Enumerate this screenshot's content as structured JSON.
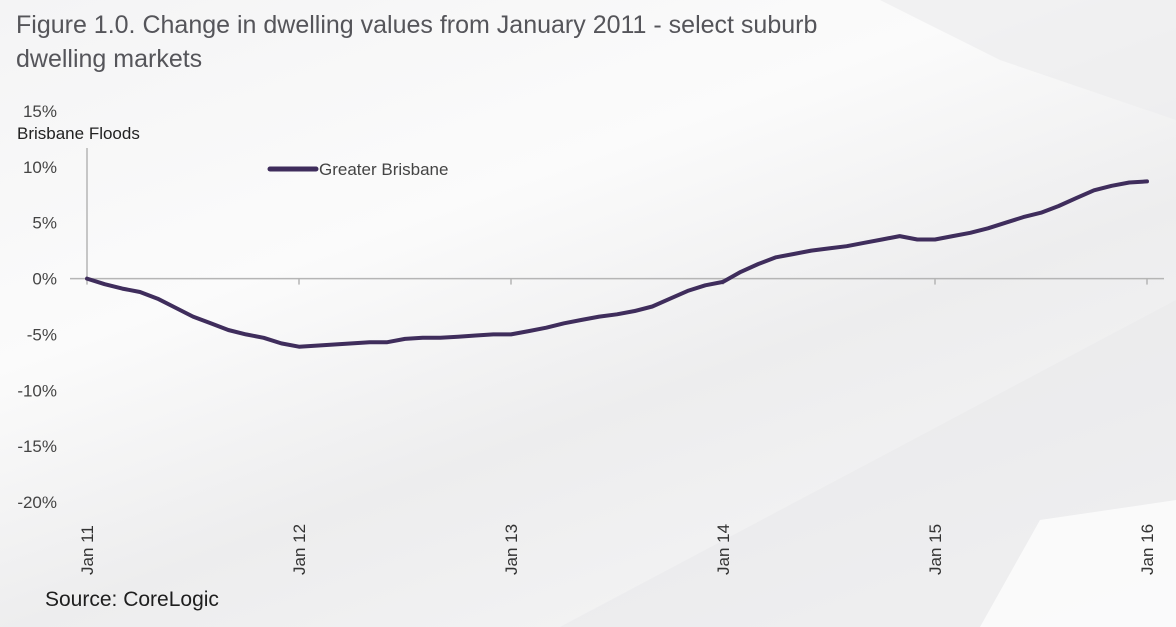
{
  "title": "Figure 1.0. Change in dwelling values from January 2011 - select suburb dwelling markets",
  "source": "Source: CoreLogic",
  "annotation": "Brisbane Floods",
  "colors": {
    "series": "#3f2d5c",
    "axis": "#b5b5b5"
  },
  "chart_data": {
    "type": "line",
    "title": "Figure 1.0. Change in dwelling values from January 2011 - select suburb dwelling markets",
    "xlabel": "",
    "ylabel": "",
    "ylim": [
      -20,
      15
    ],
    "yticks": [
      "15%",
      "10%",
      "5%",
      "0%",
      "-5%",
      "-10%",
      "-15%",
      "-20%"
    ],
    "yticks_values": [
      15,
      10,
      5,
      0,
      -5,
      -10,
      -15,
      -20
    ],
    "xticks": [
      "Jan 11",
      "Jan 12",
      "Jan 13",
      "Jan 14",
      "Jan 15",
      "Jan 16"
    ],
    "grid": false,
    "legend": "top-left",
    "annotations": [
      {
        "text": "Brisbane Floods",
        "x": "Jan 11"
      }
    ],
    "series": [
      {
        "name": "Greater Brisbane",
        "x": [
          "Jan 11",
          "Feb 11",
          "Mar 11",
          "Apr 11",
          "May 11",
          "Jun 11",
          "Jul 11",
          "Aug 11",
          "Sep 11",
          "Oct 11",
          "Nov 11",
          "Dec 11",
          "Jan 12",
          "Feb 12",
          "Mar 12",
          "Apr 12",
          "May 12",
          "Jun 12",
          "Jul 12",
          "Aug 12",
          "Sep 12",
          "Oct 12",
          "Nov 12",
          "Dec 12",
          "Jan 13",
          "Feb 13",
          "Mar 13",
          "Apr 13",
          "May 13",
          "Jun 13",
          "Jul 13",
          "Aug 13",
          "Sep 13",
          "Oct 13",
          "Nov 13",
          "Dec 13",
          "Jan 14",
          "Feb 14",
          "Mar 14",
          "Apr 14",
          "May 14",
          "Jun 14",
          "Jul 14",
          "Aug 14",
          "Sep 14",
          "Oct 14",
          "Nov 14",
          "Dec 14",
          "Jan 15",
          "Feb 15",
          "Mar 15",
          "Apr 15",
          "May 15",
          "Jun 15",
          "Jul 15",
          "Aug 15",
          "Sep 15",
          "Oct 15",
          "Nov 15",
          "Dec 15",
          "Jan 16"
        ],
        "values": [
          0.0,
          -0.5,
          -0.9,
          -1.2,
          -1.8,
          -2.6,
          -3.4,
          -4.0,
          -4.6,
          -5.0,
          -5.3,
          -5.8,
          -6.1,
          -6.0,
          -5.9,
          -5.8,
          -5.7,
          -5.7,
          -5.4,
          -5.3,
          -5.3,
          -5.2,
          -5.1,
          -5.0,
          -5.0,
          -4.7,
          -4.4,
          -4.0,
          -3.7,
          -3.4,
          -3.2,
          -2.9,
          -2.5,
          -1.8,
          -1.1,
          -0.6,
          -0.3,
          0.6,
          1.3,
          1.9,
          2.2,
          2.5,
          2.7,
          2.9,
          3.2,
          3.5,
          3.8,
          3.5,
          3.5,
          3.8,
          4.1,
          4.5,
          5.0,
          5.5,
          5.9,
          6.5,
          7.2,
          7.9,
          8.3,
          8.6,
          8.7
        ]
      }
    ]
  }
}
